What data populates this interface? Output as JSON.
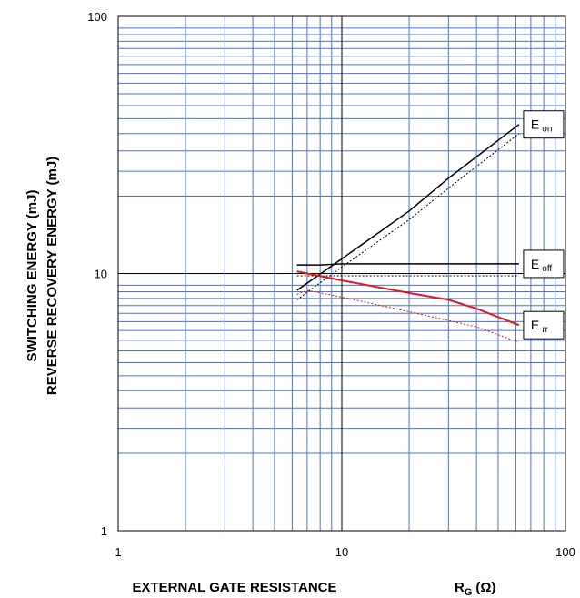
{
  "chart_data": {
    "type": "line",
    "xscale": "log",
    "yscale": "log",
    "xlim": [
      1,
      100
    ],
    "ylim": [
      1,
      100
    ],
    "grid": true,
    "xlabel": "EXTERNAL GATE RESISTANCE",
    "xlabel_symbol": "R",
    "xlabel_symbol_sub": "G",
    "xlabel_unit": "(Ω)",
    "ylabel_lines": [
      "SWITCHING ENERGY (mJ)",
      "REVERSE RECOVERY ENERGY (mJ)"
    ],
    "x_ticks": [
      "1",
      "10",
      "100"
    ],
    "y_ticks": [
      "1",
      "10",
      "100"
    ],
    "colors": {
      "grid_minor": "#4a6fe0",
      "grid_major": "#000000",
      "err": "#e01818",
      "energy": "#000000"
    },
    "series": [
      {
        "name": "E on",
        "label_main": "E",
        "label_sub": "on",
        "color": "#000000",
        "style": "solid",
        "x": [
          6.3,
          10,
          20,
          30,
          62
        ],
        "y": [
          8.6,
          11.4,
          17.5,
          23.5,
          38
        ]
      },
      {
        "label_main": "",
        "label_sub": "",
        "color": "#000000",
        "style": "dotted",
        "x": [
          6.3,
          10,
          20,
          30,
          62
        ],
        "y": [
          7.9,
          10.6,
          16.2,
          21.5,
          35
        ]
      },
      {
        "name": "E off",
        "label_main": "E",
        "label_sub": "off",
        "color": "#000000",
        "style": "solid",
        "x": [
          6.3,
          8,
          10,
          20,
          62
        ],
        "y": [
          10.8,
          10.8,
          10.9,
          10.9,
          10.9
        ]
      },
      {
        "label_main": "",
        "label_sub": "",
        "color": "#000000",
        "style": "dotted",
        "x": [
          6.3,
          10,
          20,
          62
        ],
        "y": [
          9.8,
          9.8,
          9.8,
          9.8
        ]
      },
      {
        "name": "E rr",
        "label_main": "E",
        "label_sub": "rr",
        "color": "#e01818",
        "style": "solid",
        "x": [
          6.3,
          10,
          20,
          30,
          40,
          62
        ],
        "y": [
          10.2,
          9.4,
          8.4,
          7.9,
          7.3,
          6.3
        ]
      },
      {
        "label_main": "",
        "label_sub": "",
        "color": "#e01818",
        "style": "dotted",
        "x": [
          6.3,
          7,
          10,
          20,
          40,
          62
        ],
        "y": [
          8.3,
          8.6,
          8.1,
          7.1,
          6.2,
          5.4
        ]
      }
    ]
  }
}
